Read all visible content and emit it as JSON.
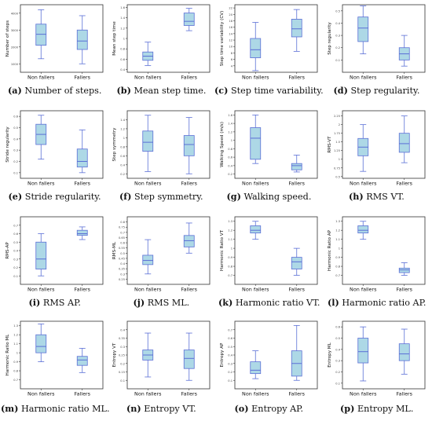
{
  "colors": {
    "box_fill": "#add8e6",
    "box_stroke": "#5b6fd6",
    "median": "#5b6fd6",
    "frame": "#333333",
    "text": "#111111"
  },
  "x_categories": [
    "Non fallers",
    "Fallers"
  ],
  "chart_data": [
    {
      "id": "a",
      "letter": "(a)",
      "caption": " Number of steps.",
      "type": "box",
      "ylabel": "Number of steps",
      "ylim": [
        500,
        4500
      ],
      "yticks": [
        1000,
        2000,
        3000,
        4000
      ],
      "boxes": [
        {
          "whislo": 1300,
          "q1": 2100,
          "med": 2750,
          "q3": 3350,
          "whishi": 4200
        },
        {
          "whislo": 1000,
          "q1": 1850,
          "med": 2350,
          "q3": 3000,
          "whishi": 3850
        }
      ]
    },
    {
      "id": "b",
      "letter": "(b)",
      "caption": " Mean step time.",
      "type": "box",
      "ylabel": "Mean step time",
      "ylim": [
        0.35,
        1.65
      ],
      "yticks": [
        0.4,
        0.6,
        0.8,
        1.0,
        1.2,
        1.4,
        1.6
      ],
      "boxes": [
        {
          "whislo": 0.48,
          "q1": 0.58,
          "med": 0.66,
          "q3": 0.74,
          "whishi": 0.93
        },
        {
          "whislo": 1.15,
          "q1": 1.25,
          "med": 1.33,
          "q3": 1.49,
          "whishi": 1.58
        }
      ]
    },
    {
      "id": "c",
      "letter": "(c)",
      "caption": " Step time variability.",
      "type": "box",
      "ylabel": "Step time variability (CV)",
      "ylim": [
        2,
        23
      ],
      "yticks": [
        4,
        6,
        8,
        10,
        12,
        14,
        16,
        18,
        20,
        22
      ],
      "boxes": [
        {
          "whislo": 2.5,
          "q1": 6.5,
          "med": 9,
          "q3": 12.5,
          "whishi": 17.5
        },
        {
          "whislo": 8.5,
          "q1": 13,
          "med": 15.5,
          "q3": 18.5,
          "whishi": 21.5
        }
      ]
    },
    {
      "id": "d",
      "letter": "(d)",
      "caption": " Step regularity.",
      "type": "box",
      "ylabel": "Step regularity",
      "ylim": [
        0.0,
        0.55
      ],
      "yticks": [
        0.1,
        0.2,
        0.3,
        0.4,
        0.5
      ],
      "boxes": [
        {
          "whislo": 0.15,
          "q1": 0.25,
          "med": 0.36,
          "q3": 0.45,
          "whishi": 0.54
        },
        {
          "whislo": 0.05,
          "q1": 0.1,
          "med": 0.15,
          "q3": 0.2,
          "whishi": 0.3
        }
      ]
    },
    {
      "id": "e",
      "letter": "(e)",
      "caption": " Stride regularity.",
      "type": "box",
      "ylabel": "Stride regularity",
      "ylim": [
        0.05,
        0.65
      ],
      "yticks": [
        0.1,
        0.2,
        0.3,
        0.4,
        0.5,
        0.6
      ],
      "boxes": [
        {
          "whislo": 0.22,
          "q1": 0.35,
          "med": 0.44,
          "q3": 0.53,
          "whishi": 0.61
        },
        {
          "whislo": 0.1,
          "q1": 0.15,
          "med": 0.2,
          "q3": 0.31,
          "whishi": 0.48
        }
      ]
    },
    {
      "id": "f",
      "letter": "(f)",
      "caption": " Step symmetry.",
      "type": "box",
      "ylabel": "Step symmetry",
      "ylim": [
        0.1,
        1.6
      ],
      "yticks": [
        0.2,
        0.4,
        0.6,
        0.8,
        1.0,
        1.2,
        1.4
      ],
      "boxes": [
        {
          "whislo": 0.25,
          "q1": 0.7,
          "med": 0.9,
          "q3": 1.15,
          "whishi": 1.5
        },
        {
          "whislo": 0.2,
          "q1": 0.6,
          "med": 0.85,
          "q3": 1.05,
          "whishi": 1.45
        }
      ]
    },
    {
      "id": "g",
      "letter": "(g)",
      "caption": " Walking speed.",
      "type": "box",
      "ylabel": "Walking Speed (m/s)",
      "ylim": [
        0.1,
        1.7
      ],
      "yticks": [
        0.2,
        0.4,
        0.6,
        0.8,
        1.0,
        1.2,
        1.4,
        1.6
      ],
      "boxes": [
        {
          "whislo": 0.45,
          "q1": 0.55,
          "med": 1.05,
          "q3": 1.3,
          "whishi": 1.6
        },
        {
          "whislo": 0.25,
          "q1": 0.3,
          "med": 0.4,
          "q3": 0.45,
          "whishi": 0.65
        }
      ]
    },
    {
      "id": "h",
      "letter": "(h)",
      "caption": " RMS VT.",
      "type": "box",
      "ylabel": "RMS-VT",
      "ylim": [
        0.45,
        2.4
      ],
      "yticks": [
        0.5,
        0.75,
        1.0,
        1.25,
        1.5,
        1.75,
        2.0,
        2.25
      ],
      "boxes": [
        {
          "whislo": 0.65,
          "q1": 1.1,
          "med": 1.35,
          "q3": 1.6,
          "whishi": 2.0
        },
        {
          "whislo": 0.9,
          "q1": 1.2,
          "med": 1.45,
          "q3": 1.75,
          "whishi": 2.25
        }
      ]
    },
    {
      "id": "i",
      "letter": "(i)",
      "caption": " RMS AP.",
      "type": "box",
      "ylabel": "RMS-AP",
      "ylim": [
        0.0,
        0.8
      ],
      "yticks": [
        0.1,
        0.2,
        0.3,
        0.4,
        0.5,
        0.6,
        0.7
      ],
      "boxes": [
        {
          "whislo": 0.1,
          "q1": 0.18,
          "med": 0.3,
          "q3": 0.5,
          "whishi": 0.6
        },
        {
          "whislo": 0.53,
          "q1": 0.58,
          "med": 0.6,
          "q3": 0.64,
          "whishi": 0.68
        }
      ]
    },
    {
      "id": "j",
      "letter": "(j)",
      "caption": " RMS ML.",
      "type": "box",
      "ylabel": "RMS-ML",
      "ylim": [
        0.2,
        0.85
      ],
      "yticks": [
        0.25,
        0.3,
        0.35,
        0.4,
        0.45,
        0.5,
        0.55,
        0.6,
        0.65,
        0.7,
        0.75,
        0.8
      ],
      "boxes": [
        {
          "whislo": 0.3,
          "q1": 0.39,
          "med": 0.43,
          "q3": 0.48,
          "whishi": 0.63
        },
        {
          "whislo": 0.5,
          "q1": 0.56,
          "med": 0.62,
          "q3": 0.67,
          "whishi": 0.79
        }
      ]
    },
    {
      "id": "k",
      "letter": "(k)",
      "caption": " Harmonic ratio VT.",
      "type": "box",
      "ylabel": "Harmonic Ratio VT",
      "ylim": [
        0.6,
        1.35
      ],
      "yticks": [
        0.7,
        0.8,
        0.9,
        1.0,
        1.1,
        1.2,
        1.3
      ],
      "boxes": [
        {
          "whislo": 1.1,
          "q1": 1.17,
          "med": 1.2,
          "q3": 1.25,
          "whishi": 1.3
        },
        {
          "whislo": 0.7,
          "q1": 0.77,
          "med": 0.85,
          "q3": 0.9,
          "whishi": 1.0
        }
      ]
    },
    {
      "id": "l",
      "letter": "(l)",
      "caption": " Harmonic ratio AP.",
      "type": "box",
      "ylabel": "Harmonic Ratio AP",
      "ylim": [
        0.6,
        1.35
      ],
      "yticks": [
        0.7,
        0.8,
        0.9,
        1.0,
        1.1,
        1.2,
        1.3
      ],
      "boxes": [
        {
          "whislo": 1.1,
          "q1": 1.17,
          "med": 1.2,
          "q3": 1.25,
          "whishi": 1.3
        },
        {
          "whislo": 0.7,
          "q1": 0.73,
          "med": 0.76,
          "q3": 0.78,
          "whishi": 0.84
        }
      ]
    },
    {
      "id": "m",
      "letter": "(m)",
      "caption": " Harmonic ratio ML.",
      "type": "box",
      "ylabel": "Harmonic Ratio ML",
      "ylim": [
        0.6,
        1.35
      ],
      "yticks": [
        0.7,
        0.8,
        0.9,
        1.0,
        1.1,
        1.2,
        1.3
      ],
      "boxes": [
        {
          "whislo": 0.9,
          "q1": 1.0,
          "med": 1.07,
          "q3": 1.2,
          "whishi": 1.32
        },
        {
          "whislo": 0.78,
          "q1": 0.86,
          "med": 0.92,
          "q3": 0.96,
          "whishi": 1.05
        }
      ]
    },
    {
      "id": "n",
      "letter": "(n)",
      "caption": " Entropy VT.",
      "type": "box",
      "ylabel": "Entropy VT",
      "ylim": [
        0.05,
        0.45
      ],
      "yticks": [
        0.1,
        0.15,
        0.2,
        0.25,
        0.3,
        0.35,
        0.4
      ],
      "boxes": [
        {
          "whislo": 0.12,
          "q1": 0.22,
          "med": 0.25,
          "q3": 0.28,
          "whishi": 0.38
        },
        {
          "whislo": 0.1,
          "q1": 0.17,
          "med": 0.23,
          "q3": 0.28,
          "whishi": 0.38
        }
      ]
    },
    {
      "id": "o",
      "letter": "(o)",
      "caption": " Entropy AP.",
      "type": "box",
      "ylabel": "Entropy AP",
      "ylim": [
        0.0,
        0.8
      ],
      "yticks": [
        0.1,
        0.2,
        0.3,
        0.4,
        0.5,
        0.6,
        0.7
      ],
      "boxes": [
        {
          "whislo": 0.12,
          "q1": 0.18,
          "med": 0.22,
          "q3": 0.32,
          "whishi": 0.45
        },
        {
          "whislo": 0.1,
          "q1": 0.15,
          "med": 0.3,
          "q3": 0.45,
          "whishi": 0.75
        }
      ]
    },
    {
      "id": "p",
      "letter": "(p)",
      "caption": " Entropy ML.",
      "type": "box",
      "ylabel": "Entropy ML",
      "ylim": [
        0.05,
        0.65
      ],
      "yticks": [
        0.1,
        0.2,
        0.3,
        0.4,
        0.5,
        0.6
      ],
      "boxes": [
        {
          "whislo": 0.12,
          "q1": 0.28,
          "med": 0.38,
          "q3": 0.5,
          "whishi": 0.6
        },
        {
          "whislo": 0.18,
          "q1": 0.3,
          "med": 0.36,
          "q3": 0.45,
          "whishi": 0.58
        }
      ]
    }
  ]
}
